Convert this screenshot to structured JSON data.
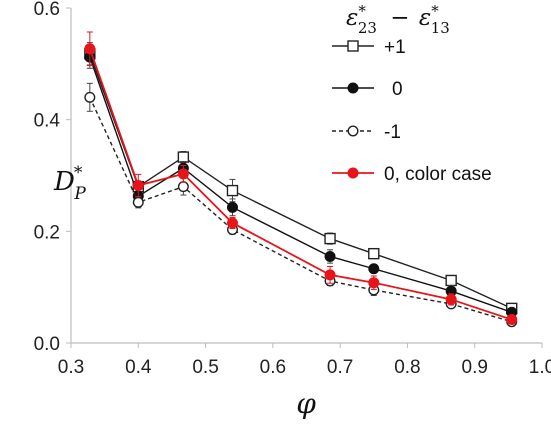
{
  "chart_data": {
    "type": "line",
    "title": "",
    "xlabel": "φ",
    "ylabel": "D*_P",
    "xlim": [
      0.3,
      1.0
    ],
    "ylim": [
      0.0,
      0.6
    ],
    "xticks": [
      0.3,
      0.4,
      0.5,
      0.6,
      0.7,
      0.8,
      0.9,
      1.0
    ],
    "yticks": [
      0.0,
      0.2,
      0.4,
      0.6
    ],
    "xtick_labels": [
      "0.3",
      "0.4",
      "0.5",
      "0.6",
      "0.7",
      "0.8",
      "0.9",
      "1.0"
    ],
    "ytick_labels": [
      "0.0",
      "0.2",
      "0.4",
      "0.6"
    ],
    "grid": false,
    "legend": {
      "title": "ε*23 − ε*13",
      "placement": "top-right"
    },
    "x": [
      0.328,
      0.4,
      0.467,
      0.54,
      0.685,
      0.75,
      0.865,
      0.955
    ],
    "series": [
      {
        "name": "+1",
        "color": "#222222",
        "marker": "square-open",
        "line": "solid",
        "values": [
          0.518,
          0.28,
          0.333,
          0.273,
          0.187,
          0.16,
          0.112,
          0.062
        ],
        "err": [
          0.02,
          0.01,
          0.01,
          0.02,
          0.01,
          0.005,
          0.008,
          0.005
        ]
      },
      {
        "name": "0",
        "color": "#111111",
        "marker": "circle-filled",
        "line": "solid",
        "values": [
          0.512,
          0.263,
          0.313,
          0.243,
          0.155,
          0.133,
          0.093,
          0.055
        ],
        "err": [
          0.02,
          0.015,
          0.012,
          0.015,
          0.012,
          0.006,
          0.01,
          0.005
        ]
      },
      {
        "name": "-1",
        "color": "#222222",
        "marker": "circle-open",
        "line": "dashed",
        "values": [
          0.44,
          0.252,
          0.28,
          0.203,
          0.111,
          0.095,
          0.07,
          0.038
        ],
        "err": [
          0.025,
          0.01,
          0.015,
          0.008,
          0.008,
          0.01,
          0.005,
          0.004
        ]
      },
      {
        "name": "0, color case",
        "color": "#e8141b",
        "marker": "circle-filled",
        "line": "solid",
        "values": [
          0.527,
          0.282,
          0.303,
          0.215,
          0.122,
          0.108,
          0.078,
          0.042
        ],
        "err": [
          0.03,
          0.02,
          0.015,
          0.01,
          0.015,
          0.012,
          0.01,
          0.006
        ]
      }
    ]
  }
}
